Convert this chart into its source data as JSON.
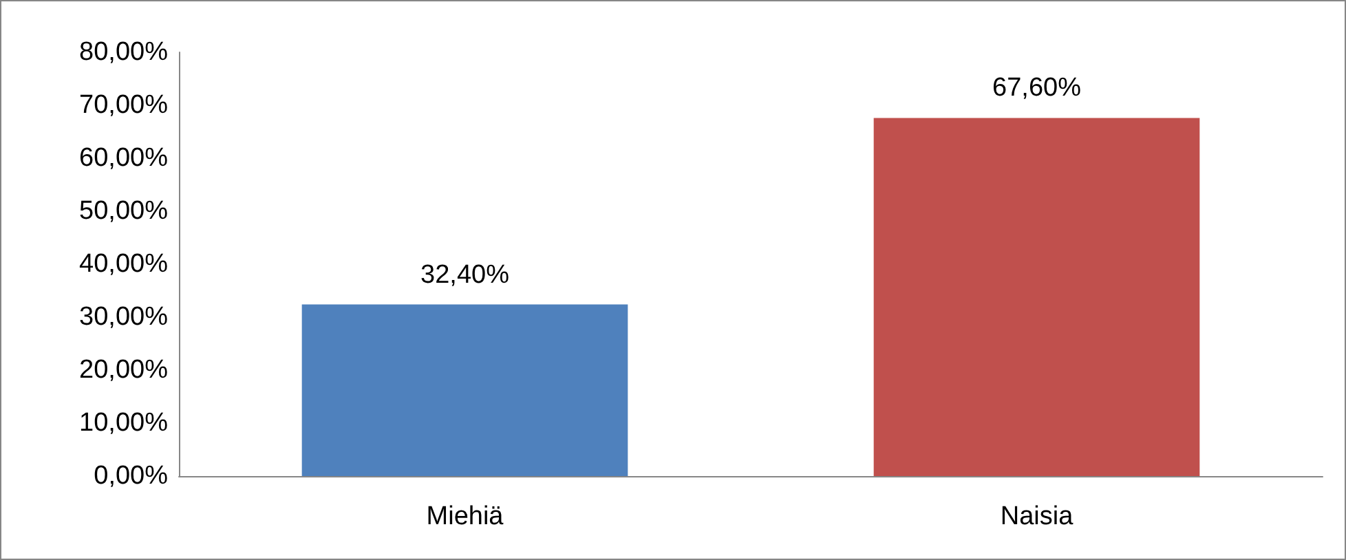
{
  "chart_data": {
    "type": "bar",
    "categories": [
      "Miehiä",
      "Naisia"
    ],
    "values": [
      32.4,
      67.6
    ],
    "colors": [
      "#4f81bd",
      "#c0504d"
    ],
    "value_labels": [
      "32,40%",
      "67,60%"
    ],
    "ylim": [
      0,
      80
    ],
    "yticks": [
      {
        "value": 0,
        "label": "0,00%"
      },
      {
        "value": 10,
        "label": "10,00%"
      },
      {
        "value": 20,
        "label": "20,00%"
      },
      {
        "value": 30,
        "label": "30,00%"
      },
      {
        "value": 40,
        "label": "40,00%"
      },
      {
        "value": 50,
        "label": "50,00%"
      },
      {
        "value": 60,
        "label": "60,00%"
      },
      {
        "value": 70,
        "label": "70,00%"
      },
      {
        "value": 80,
        "label": "80,00%"
      }
    ],
    "grid": false
  }
}
